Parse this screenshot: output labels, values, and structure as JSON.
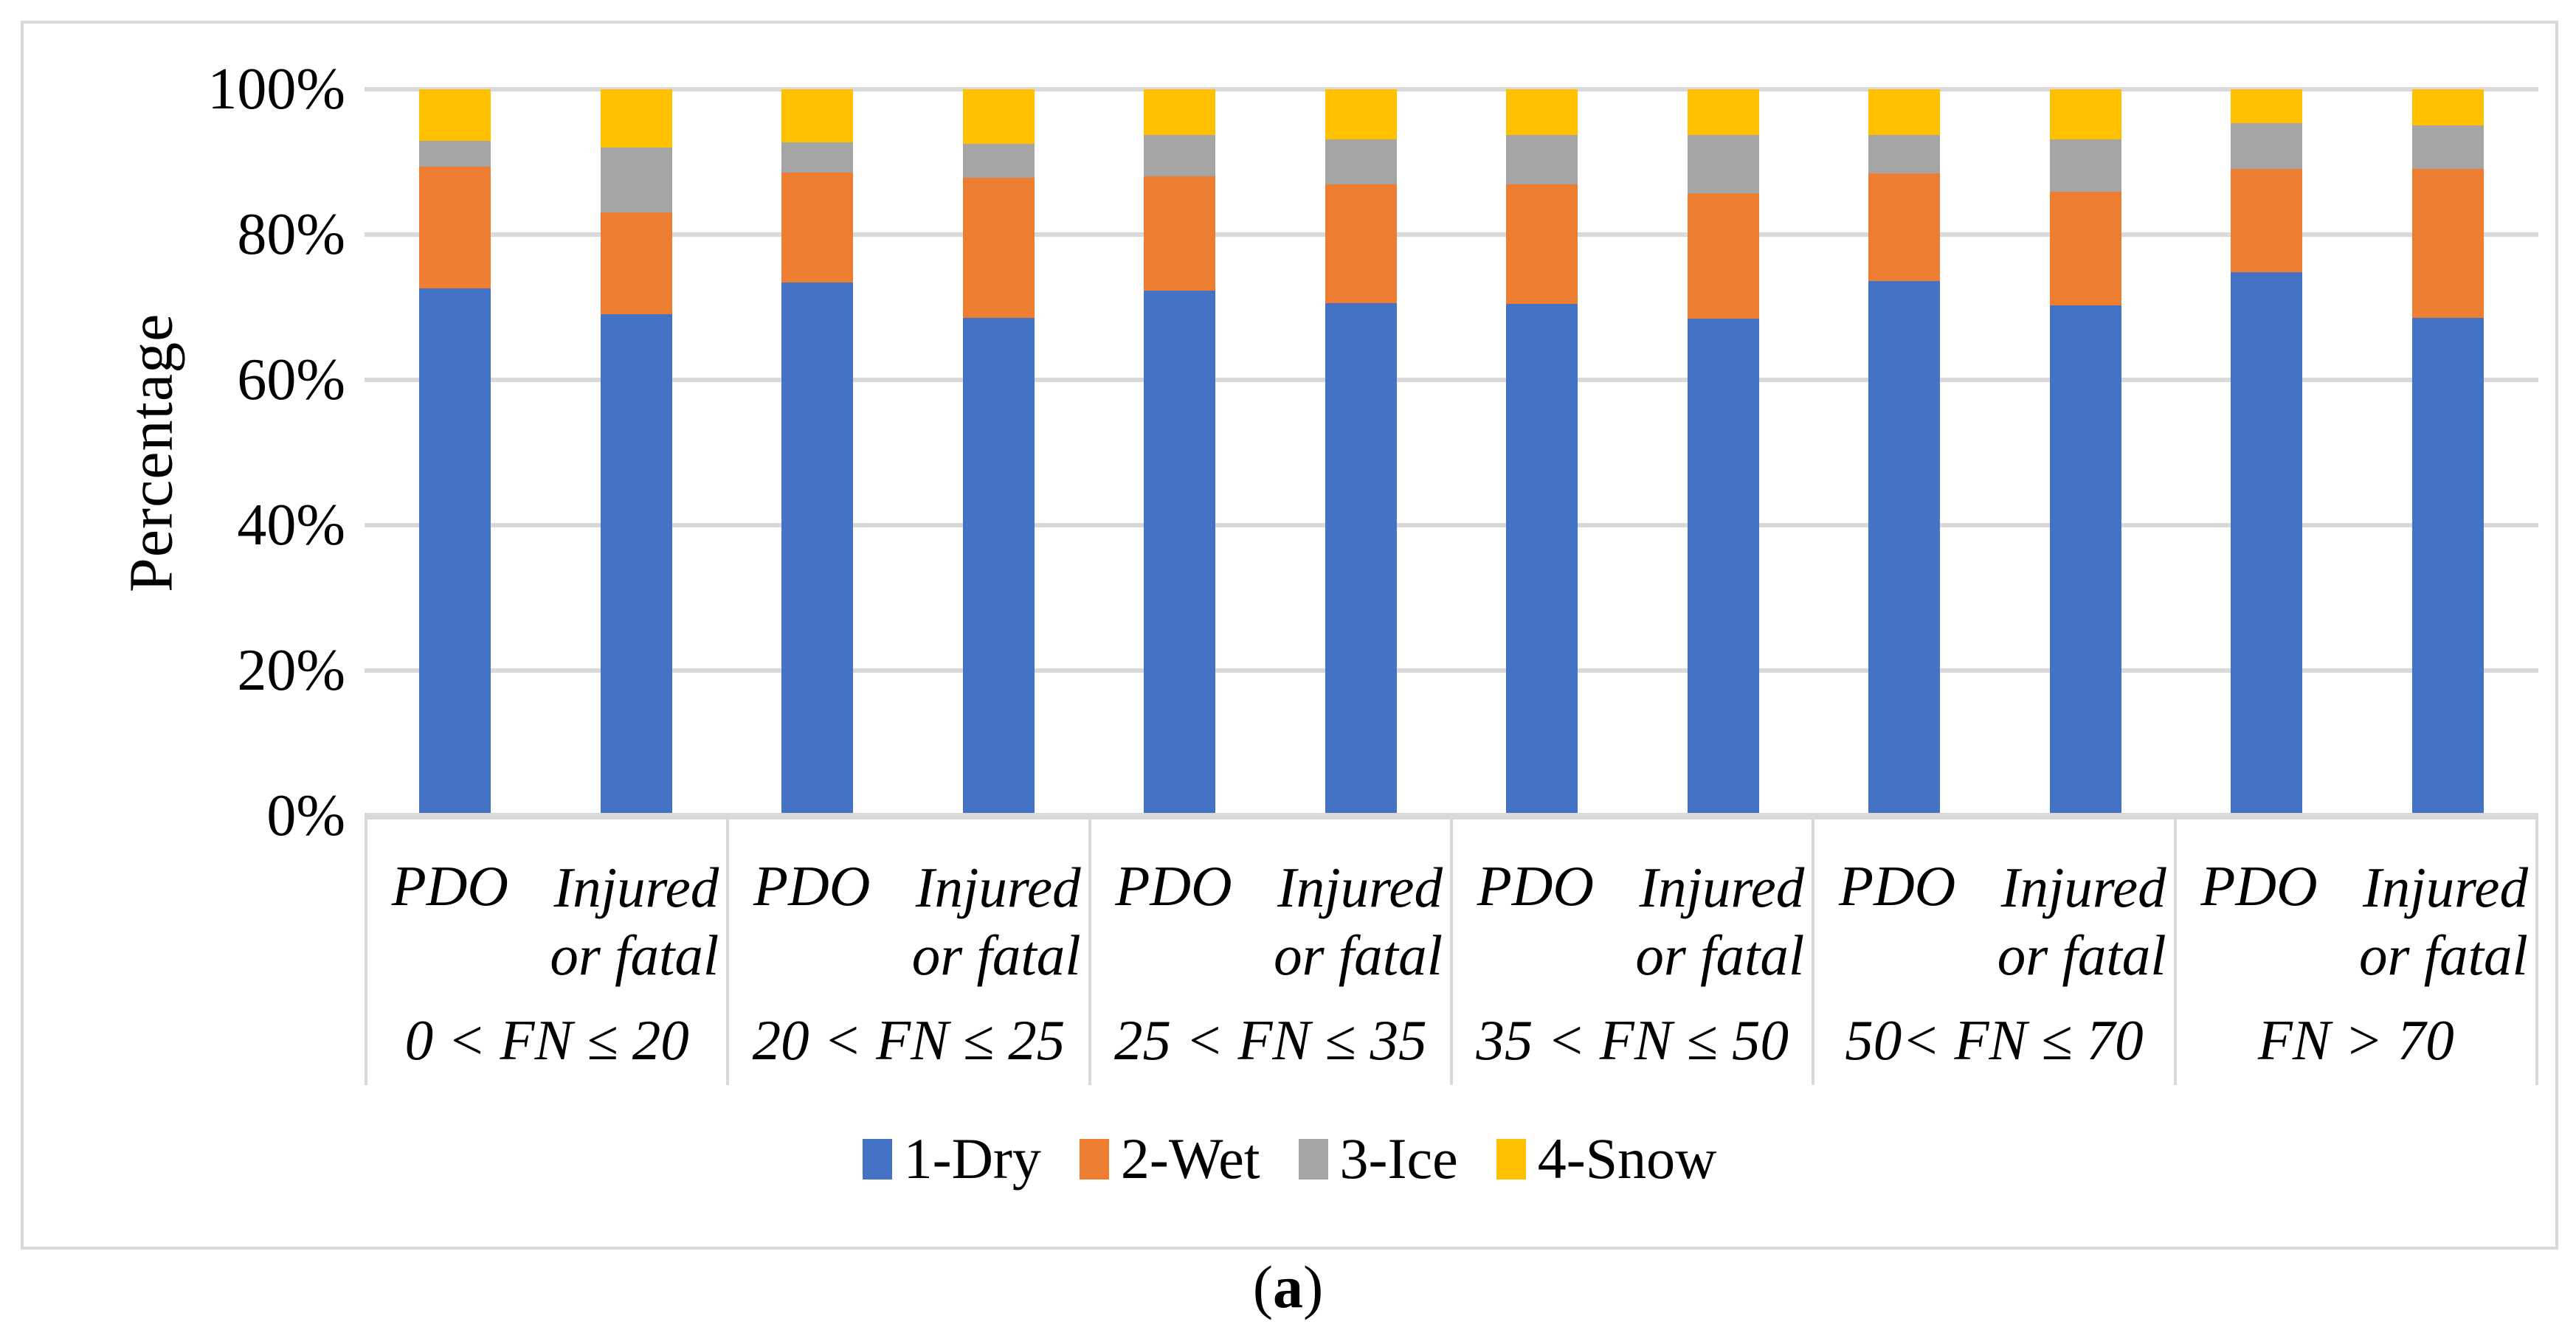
{
  "figure": {
    "caption": {
      "open": "(",
      "letter": "a",
      "close": ")"
    }
  },
  "y_axis": {
    "title": "Percentage",
    "ticks": [
      {
        "value": 100,
        "label": "100%"
      },
      {
        "value": 80,
        "label": "80%"
      },
      {
        "value": 60,
        "label": "60%"
      },
      {
        "value": 40,
        "label": "40%"
      },
      {
        "value": 20,
        "label": "20%"
      },
      {
        "value": 0,
        "label": "0%"
      }
    ]
  },
  "x_axis": {
    "pdo_label": "PDO",
    "injured_label_line1": "Injured",
    "injured_label_line2": "or fatal",
    "groups": [
      "0 < FN ≤ 20",
      "20 < FN ≤ 25",
      "25 < FN ≤ 35",
      "35 < FN ≤ 50",
      "50< FN ≤ 70",
      "FN > 70"
    ]
  },
  "legend": {
    "items": [
      {
        "label": "1-Dry",
        "color": "#4472C4"
      },
      {
        "label": "2-Wet",
        "color": "#ED7D31"
      },
      {
        "label": "3-Ice",
        "color": "#A5A5A5"
      },
      {
        "label": "4-Snow",
        "color": "#FFC000"
      }
    ]
  },
  "colors": {
    "gridline": "#D9D9D9",
    "axis_line": "#D9D9D9",
    "separator": "#D9D9D9",
    "figure_border": "#D9D9D9",
    "text": "#000000"
  },
  "chart_data": {
    "type": "bar",
    "stacked": true,
    "units": "percent",
    "title": "",
    "xlabel": "",
    "ylabel": "Percentage",
    "ylim": [
      0,
      100
    ],
    "y_tick_values": [
      0,
      20,
      40,
      60,
      80,
      100
    ],
    "grid": true,
    "legend_position": "bottom",
    "groups": [
      "0 < FN ≤ 20",
      "20 < FN ≤ 25",
      "25 < FN ≤ 35",
      "35 < FN ≤ 50",
      "50< FN ≤ 70",
      "FN > 70"
    ],
    "bars_per_group": [
      "PDO",
      "Injured or fatal"
    ],
    "bar_labels": [
      "PDO 0<FN≤20",
      "Injured or fatal 0<FN≤20",
      "PDO 20<FN≤25",
      "Injured or fatal 20<FN≤25",
      "PDO 25<FN≤35",
      "Injured or fatal 25<FN≤35",
      "PDO 35<FN≤50",
      "Injured or fatal 35<FN≤50",
      "PDO 50<FN≤70",
      "Injured or fatal 50<FN≤70",
      "PDO FN>70",
      "Injured or fatal FN>70"
    ],
    "series": [
      {
        "name": "1-Dry",
        "color": "#4472C4",
        "values": [
          72.6,
          69.0,
          73.4,
          68.5,
          72.3,
          70.6,
          70.5,
          68.4,
          73.6,
          70.3,
          74.8,
          68.5
        ]
      },
      {
        "name": "2-Wet",
        "color": "#ED7D31",
        "values": [
          16.7,
          14.0,
          15.1,
          19.3,
          15.7,
          16.3,
          16.4,
          17.3,
          14.8,
          15.6,
          14.2,
          20.5
        ]
      },
      {
        "name": "3-Ice",
        "color": "#A5A5A5",
        "values": [
          3.6,
          9.0,
          4.2,
          4.7,
          5.7,
          6.2,
          6.8,
          8.0,
          5.3,
          7.2,
          6.3,
          6.0
        ]
      },
      {
        "name": "4-Snow",
        "color": "#FFC000",
        "values": [
          7.1,
          8.0,
          7.3,
          7.5,
          6.3,
          6.9,
          6.3,
          6.3,
          6.3,
          6.9,
          4.7,
          5.0
        ]
      }
    ]
  }
}
